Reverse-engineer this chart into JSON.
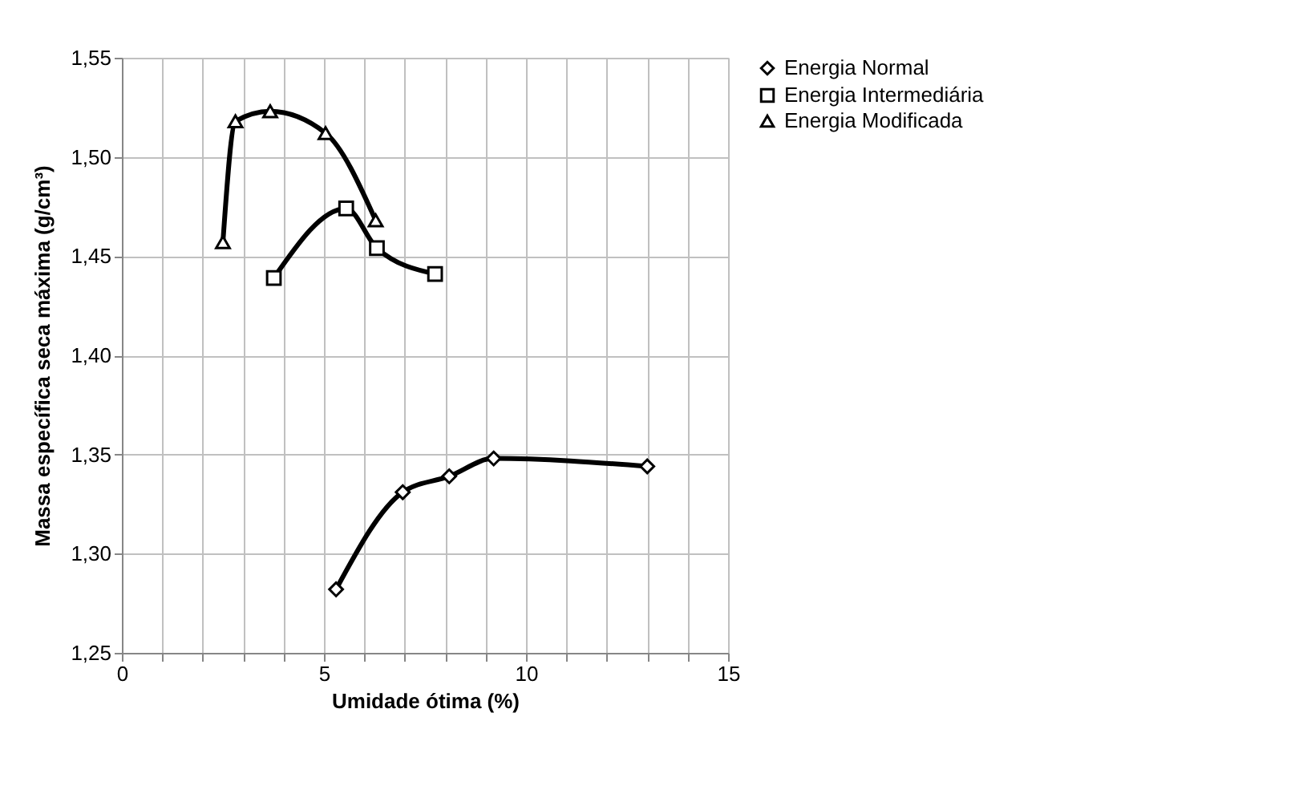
{
  "chart_data": {
    "type": "line",
    "xlabel": "Umidade ótima (%)",
    "ylabel": "Massa específica seca máxima (g/cm³)",
    "xlim": [
      0,
      15
    ],
    "ylim": [
      1.25,
      1.55
    ],
    "xticks": [
      0,
      {
        "value": 1,
        "label": null
      },
      {
        "value": 2,
        "label": null
      },
      {
        "value": 3,
        "label": null
      },
      {
        "value": 4,
        "label": null
      },
      5,
      {
        "value": 6,
        "label": null
      },
      {
        "value": 7,
        "label": null
      },
      {
        "value": 8,
        "label": null
      },
      {
        "value": 9,
        "label": null
      },
      10,
      {
        "value": 11,
        "label": null
      },
      {
        "value": 12,
        "label": null
      },
      {
        "value": 13,
        "label": null
      },
      {
        "value": 14,
        "label": null
      },
      15
    ],
    "yticks": [
      {
        "value": 1.25,
        "label": "1,25"
      },
      {
        "value": 1.3,
        "label": "1,30"
      },
      {
        "value": 1.35,
        "label": "1,35"
      },
      {
        "value": 1.4,
        "label": "1,40"
      },
      {
        "value": 1.45,
        "label": "1,45"
      },
      {
        "value": 1.5,
        "label": "1,50"
      },
      {
        "value": 1.55,
        "label": "1,55"
      }
    ],
    "grid": true,
    "legend": "right",
    "line_style": "solid",
    "series": [
      {
        "name": "Energia Normal",
        "color": "#000000",
        "marker": "diamond",
        "x": [
          5.3,
          6.95,
          8.1,
          9.2,
          13.0
        ],
        "values": [
          1.282,
          1.331,
          1.339,
          1.348,
          1.344
        ]
      },
      {
        "name": "Energia Intermediária",
        "color": "#000000",
        "marker": "square",
        "x": [
          3.76,
          5.55,
          6.31,
          7.75
        ],
        "values": [
          1.439,
          1.474,
          1.454,
          1.441
        ]
      },
      {
        "name": "Energia Modificada",
        "color": "#000000",
        "marker": "triangle",
        "x": [
          2.5,
          2.81,
          3.67,
          5.04,
          6.28
        ],
        "values": [
          1.457,
          1.518,
          1.523,
          1.512,
          1.468
        ]
      }
    ]
  }
}
